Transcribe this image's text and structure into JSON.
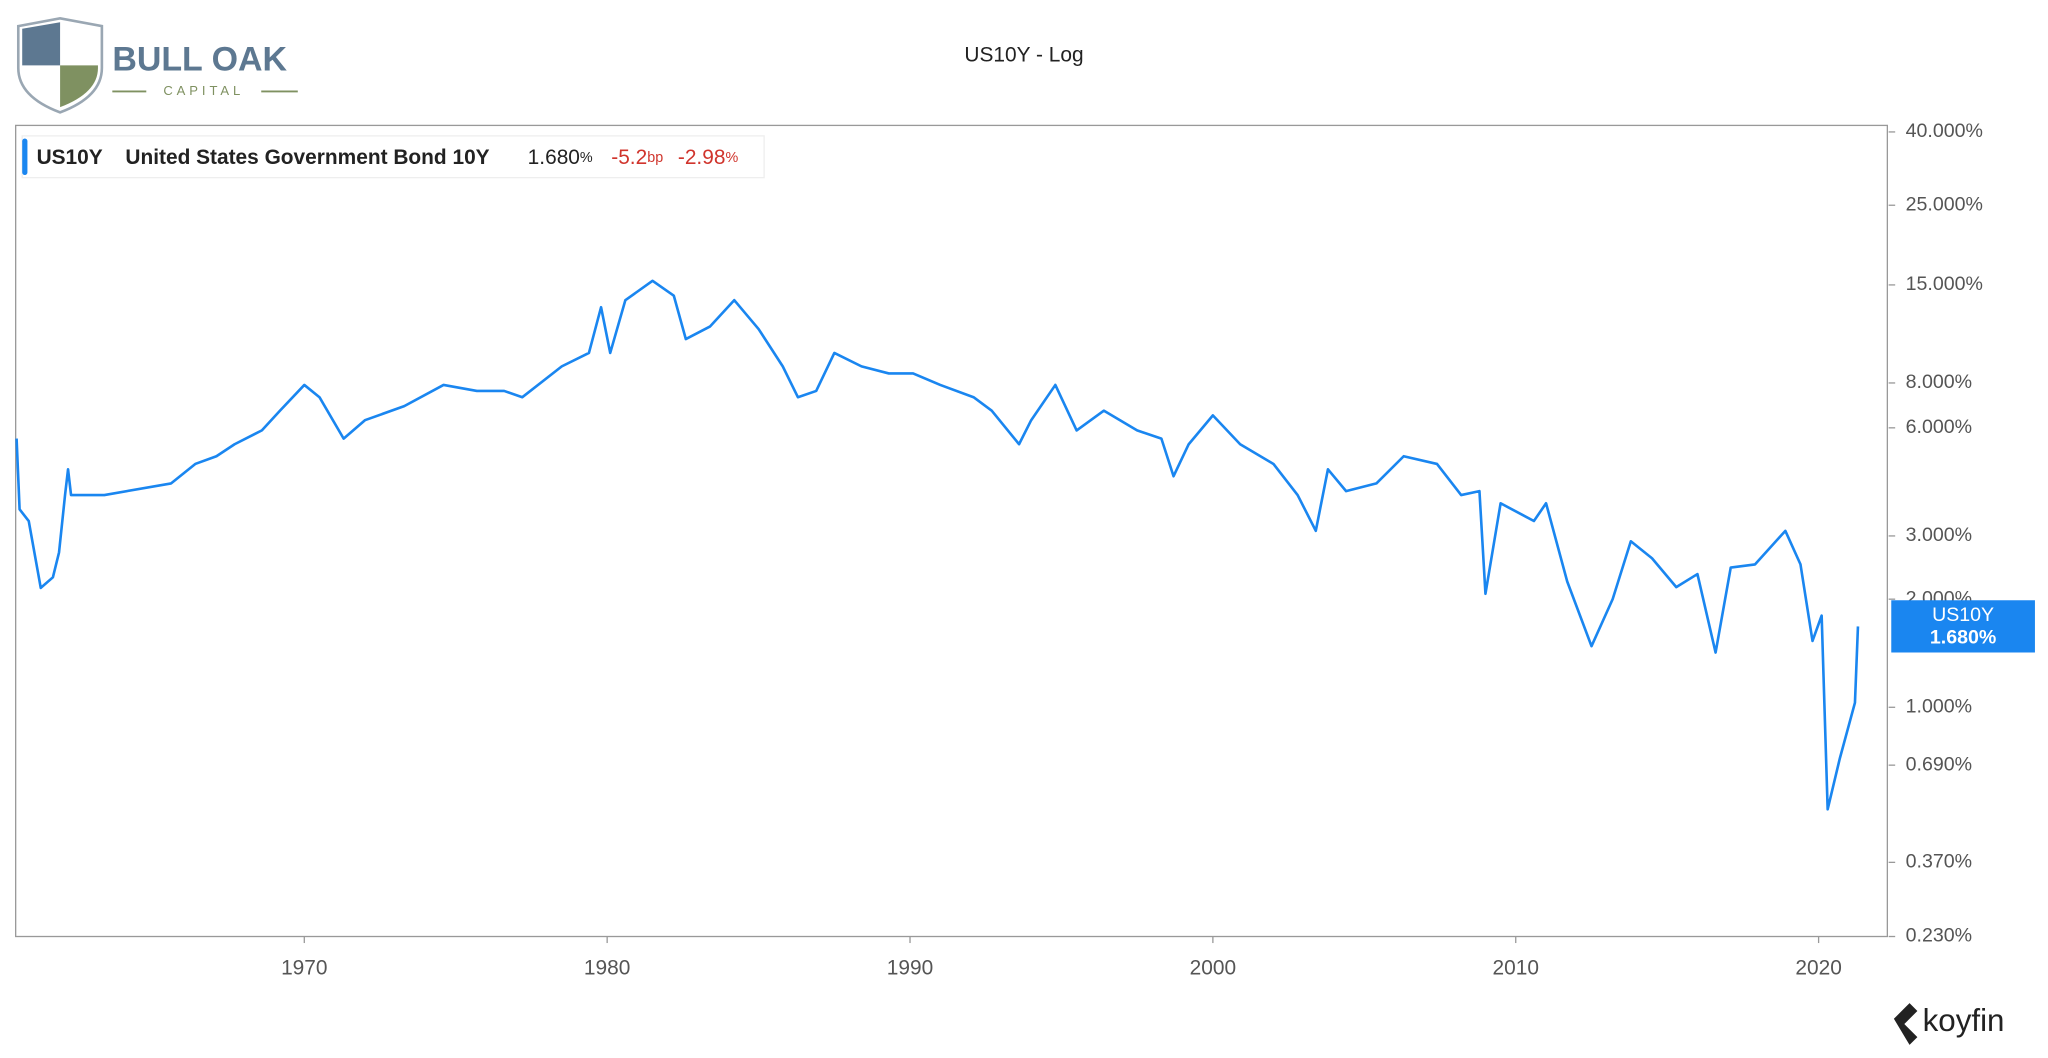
{
  "header": {
    "brand": "BULL OAK",
    "brand_sub": "CAPITAL"
  },
  "footer": {
    "brand": "koyfin"
  },
  "chart_data": {
    "type": "line",
    "title": "US10Y - Log",
    "legend_info": {
      "symbol": "US10Y",
      "name": "United States Government Bond 10Y",
      "last": "1.680",
      "last_unit": "%",
      "change": "-5.2",
      "change_unit": "bp",
      "change_pct": "-2.98",
      "change_pct_unit": "%"
    },
    "price_tag": {
      "symbol": "US10Y",
      "label": "1.680%"
    },
    "log_scale": true,
    "xlim": [
      1960.47,
      2022.27
    ],
    "xticks": [
      1970,
      1980,
      1990,
      2000,
      2010,
      2020
    ],
    "ylim": [
      0.23,
      40
    ],
    "yticks": [
      {
        "value": 40,
        "label": "40.000%"
      },
      {
        "value": 25,
        "label": "25.000%"
      },
      {
        "value": 15,
        "label": "15.000%"
      },
      {
        "value": 8,
        "label": "8.000%"
      },
      {
        "value": 6,
        "label": "6.000%"
      },
      {
        "value": 3,
        "label": "3.000%"
      },
      {
        "value": 2,
        "label": "2.000%"
      },
      {
        "value": 1,
        "label": "1.000%"
      },
      {
        "value": 0.69,
        "label": "0.690%"
      },
      {
        "value": 0.37,
        "label": "0.370%"
      },
      {
        "value": 0.23,
        "label": "0.230%"
      }
    ],
    "series": [
      {
        "name": "US10Y",
        "color": "#1a86f0",
        "x": [
          1960.5,
          1960.6,
          1960.9,
          1961.3,
          1961.7,
          1961.9,
          1962.1,
          1962.2,
          1962.3,
          1963.4,
          1965.6,
          1966.4,
          1967.1,
          1967.7,
          1968.6,
          1969.2,
          1970.0,
          1970.5,
          1971.3,
          1972.0,
          1973.3,
          1974.6,
          1975.7,
          1976.6,
          1977.2,
          1978.5,
          1979.4,
          1979.8,
          1980.1,
          1980.6,
          1981.5,
          1982.2,
          1982.6,
          1983.4,
          1984.2,
          1985.0,
          1985.8,
          1986.3,
          1986.9,
          1987.5,
          1988.4,
          1989.3,
          1990.1,
          1991.0,
          1992.1,
          1992.7,
          1993.6,
          1994.0,
          1994.8,
          1995.5,
          1996.4,
          1997.5,
          1998.3,
          1998.7,
          1999.2,
          2000.0,
          2000.9,
          2002.0,
          2002.8,
          2003.4,
          2003.8,
          2004.4,
          2005.4,
          2006.3,
          2007.4,
          2008.2,
          2008.8,
          2009.0,
          2009.5,
          2010.6,
          2011.0,
          2011.7,
          2012.5,
          2013.2,
          2013.8,
          2014.5,
          2015.3,
          2016.0,
          2016.6,
          2017.1,
          2017.9,
          2018.9,
          2019.4,
          2019.8,
          2020.1,
          2020.3,
          2020.7,
          2021.2,
          2021.3
        ],
        "values": [
          5.6,
          3.56,
          3.3,
          2.15,
          2.3,
          2.7,
          3.9,
          4.6,
          3.9,
          3.9,
          4.2,
          4.76,
          5.0,
          5.4,
          5.9,
          6.7,
          7.9,
          7.3,
          5.6,
          6.3,
          6.9,
          7.9,
          7.6,
          7.6,
          7.3,
          8.9,
          9.7,
          13,
          9.7,
          13.6,
          15.4,
          14,
          10.6,
          11.5,
          13.6,
          11.3,
          8.9,
          7.3,
          7.6,
          9.7,
          8.9,
          8.5,
          8.5,
          7.9,
          7.3,
          6.7,
          5.4,
          6.3,
          7.9,
          5.9,
          6.7,
          5.9,
          5.6,
          4.4,
          5.4,
          6.5,
          5.4,
          4.76,
          3.9,
          3.1,
          4.6,
          4.0,
          4.2,
          5.0,
          4.76,
          3.9,
          4.0,
          2.07,
          3.7,
          3.3,
          3.7,
          2.24,
          1.48,
          2.0,
          2.9,
          2.6,
          2.16,
          2.35,
          1.42,
          2.45,
          2.5,
          3.1,
          2.5,
          1.53,
          1.8,
          0.52,
          0.72,
          1.03,
          1.68
        ]
      }
    ]
  }
}
